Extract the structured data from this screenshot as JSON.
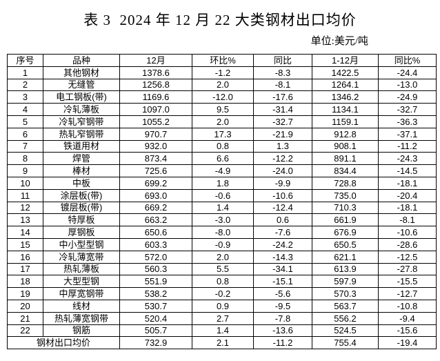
{
  "title": "表 3  2024 年 12 月 22 大类钢材出口均价",
  "unit_label": "单位:美元/吨",
  "table": {
    "column_keys": [
      "index",
      "variety",
      "dec",
      "mom_pct",
      "yoy",
      "jan_dec",
      "yoy_pct"
    ],
    "headers": [
      "序号",
      "品种",
      "12月",
      "环比%",
      "同比",
      "1-12月",
      "同比%"
    ],
    "rows": [
      [
        "1",
        "其他钢材",
        "1378.6",
        "-1.2",
        "-8.3",
        "1422.5",
        "-24.4"
      ],
      [
        "2",
        "无缝管",
        "1256.8",
        "2.0",
        "-8.1",
        "1264.1",
        "-13.0"
      ],
      [
        "3",
        "电工钢板(带)",
        "1169.6",
        "-12.0",
        "-17.6",
        "1346.2",
        "-24.9"
      ],
      [
        "4",
        "冷轧薄板",
        "1097.0",
        "9.5",
        "-31.4",
        "1134.1",
        "-32.7"
      ],
      [
        "5",
        "冷轧窄钢带",
        "1055.2",
        "2.0",
        "-32.7",
        "1159.1",
        "-36.3"
      ],
      [
        "6",
        "热轧窄钢带",
        "970.7",
        "17.3",
        "-21.9",
        "912.8",
        "-37.1"
      ],
      [
        "7",
        "铁道用材",
        "932.0",
        "0.8",
        "1.3",
        "908.1",
        "-11.2"
      ],
      [
        "8",
        "焊管",
        "873.4",
        "6.6",
        "-12.2",
        "891.1",
        "-24.3"
      ],
      [
        "9",
        "棒材",
        "725.6",
        "-4.9",
        "-24.0",
        "834.4",
        "-14.5"
      ],
      [
        "10",
        "中板",
        "699.2",
        "1.8",
        "-9.9",
        "728.8",
        "-18.1"
      ],
      [
        "11",
        "涂层板(带)",
        "693.0",
        "-0.6",
        "-10.6",
        "735.0",
        "-20.4"
      ],
      [
        "12",
        "镀层板(带)",
        "669.2",
        "1.4",
        "-12.4",
        "710.3",
        "-18.1"
      ],
      [
        "13",
        "特厚板",
        "663.2",
        "-3.0",
        "0.6",
        "661.9",
        "-8.1"
      ],
      [
        "14",
        "厚钢板",
        "650.6",
        "-8.0",
        "-7.6",
        "676.9",
        "-10.6"
      ],
      [
        "15",
        "中小型型钢",
        "603.3",
        "-0.9",
        "-24.2",
        "650.5",
        "-28.6"
      ],
      [
        "16",
        "冷轧薄宽带",
        "572.0",
        "2.0",
        "-14.3",
        "621.1",
        "-12.5"
      ],
      [
        "17",
        "热轧薄板",
        "560.3",
        "5.5",
        "-34.1",
        "613.9",
        "-27.8"
      ],
      [
        "18",
        "大型型钢",
        "551.9",
        "0.8",
        "-15.1",
        "597.9",
        "-15.5"
      ],
      [
        "19",
        "中厚宽钢带",
        "538.2",
        "-0.2",
        "-5.6",
        "570.3",
        "-12.7"
      ],
      [
        "20",
        "线材",
        "530.7",
        "0.9",
        "-9.5",
        "563.7",
        "-10.8"
      ],
      [
        "21",
        "热轧薄宽钢带",
        "520.4",
        "2.7",
        "-7.8",
        "556.2",
        "-9.4"
      ],
      [
        "22",
        "钢筋",
        "505.7",
        "1.4",
        "-13.6",
        "524.5",
        "-15.6"
      ]
    ],
    "footer": {
      "label": "钢材出口均价",
      "values": [
        "732.9",
        "2.1",
        "-11.2",
        "755.4",
        "-19.4"
      ]
    }
  }
}
